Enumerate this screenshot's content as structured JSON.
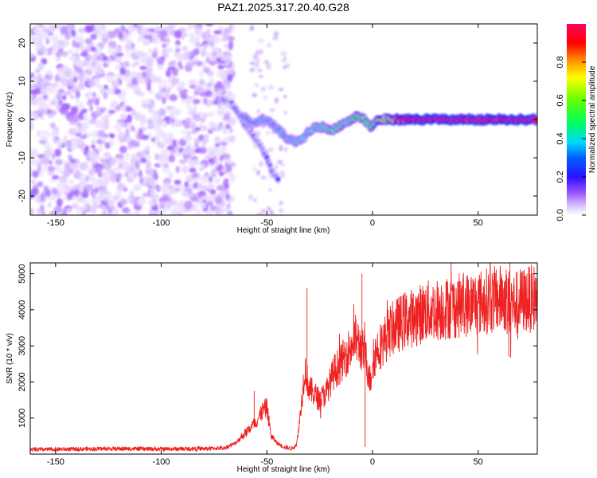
{
  "figure_title": "PAZ1.2025.317.20.40.G28",
  "colors": {
    "snr_line": "#ee2222",
    "ridge": [
      "#ffffff",
      "#e8d8ff",
      "#b48cff",
      "#7a1ef0",
      "#2020ff",
      "#00c8ff",
      "#00e050",
      "#ffd000",
      "#ff2000",
      "#ff0080"
    ]
  },
  "chart_data": [
    {
      "type": "heatmap",
      "title": "PAZ1.2025.317.20.40.G28",
      "xlabel": "Height of straight line (km)",
      "ylabel": "Frequency (Hz)",
      "xlim": [
        -162,
        78
      ],
      "ylim": [
        -25,
        25
      ],
      "x_ticks": [
        -150,
        -100,
        -50,
        0,
        50
      ],
      "x_tick_labels": [
        "-150",
        "-100",
        "-50",
        "0",
        "50"
      ],
      "y_ticks": [
        -20,
        -10,
        0,
        10,
        20
      ],
      "y_tick_labels": [
        "-20",
        "-10",
        "0",
        "10",
        "20"
      ],
      "colorbar": {
        "label": "Normalized spectral amplitude",
        "range": [
          0,
          1
        ],
        "ticks": [
          0.0,
          0.2,
          0.4,
          0.6,
          0.8
        ],
        "tick_labels": [
          "0.0",
          "0.2",
          "0.4",
          "0.6",
          "0.8"
        ],
        "colormap": "white-purple-blue-cyan-green-yellow-red-magenta"
      },
      "description_of_signal": [
        {
          "segment": "noise",
          "x_range": [
            -162,
            -72
          ],
          "freq_range": [
            -25,
            25
          ],
          "amplitude_range": [
            0.02,
            0.1
          ]
        },
        {
          "segment": "descending_ridge",
          "points": [
            [
              -72,
              5
            ],
            [
              -68,
              5
            ],
            [
              -65,
              3
            ],
            [
              -62,
              0
            ],
            [
              -58,
              -3
            ],
            [
              -54,
              -6
            ],
            [
              -50,
              -10
            ],
            [
              -47,
              -14
            ],
            [
              -44,
              -16
            ]
          ]
        },
        {
          "segment": "ridge",
          "points": [
            [
              -62,
              1
            ],
            [
              -57,
              -1
            ],
            [
              -52,
              0
            ],
            [
              -48,
              -1
            ],
            [
              -44,
              -3
            ],
            [
              -40,
              -5
            ],
            [
              -36,
              -6
            ],
            [
              -33,
              -5
            ],
            [
              -30,
              -3
            ],
            [
              -27,
              -2
            ],
            [
              -23,
              -2
            ],
            [
              -20,
              -3
            ],
            [
              -17,
              -2
            ],
            [
              -13,
              -1
            ],
            [
              -10,
              0
            ],
            [
              -7,
              1
            ],
            [
              -4,
              0
            ],
            [
              -1,
              -2
            ],
            [
              3,
              0
            ],
            [
              8,
              0
            ],
            [
              15,
              0
            ],
            [
              25,
              0
            ],
            [
              40,
              0
            ],
            [
              60,
              0
            ],
            [
              78,
              0
            ]
          ]
        }
      ]
    },
    {
      "type": "line",
      "xlabel": "Height of straight line (km)",
      "ylabel": "SNR (10 * v/v)",
      "xlim": [
        -162,
        78
      ],
      "ylim": [
        0,
        5300
      ],
      "x_ticks": [
        -150,
        -100,
        -50,
        0,
        50
      ],
      "x_tick_labels": [
        "-150",
        "-100",
        "-50",
        "0",
        "50"
      ],
      "y_ticks": [
        1000,
        2000,
        3000,
        4000,
        5000
      ],
      "y_tick_labels": [
        "1000",
        "2000",
        "3000",
        "4000",
        "5000"
      ],
      "series": [
        {
          "name": "SNR",
          "x": [
            -162,
            -140,
            -120,
            -100,
            -80,
            -70,
            -65,
            -60,
            -55,
            -52,
            -50,
            -48,
            -45,
            -42,
            -38,
            -36,
            -34,
            -32,
            -30,
            -28,
            -25,
            -22,
            -20,
            -18,
            -15,
            -12,
            -10,
            -8,
            -5,
            -3,
            -1,
            0,
            2,
            5,
            8,
            10,
            15,
            20,
            25,
            30,
            35,
            40,
            45,
            50,
            55,
            60,
            62,
            65,
            67,
            70,
            75,
            78
          ],
          "values": [
            120,
            140,
            150,
            140,
            150,
            170,
            300,
            600,
            900,
            1200,
            1300,
            500,
            300,
            200,
            150,
            250,
            1200,
            2400,
            1800,
            1700,
            1500,
            1700,
            2000,
            2300,
            2500,
            2800,
            3000,
            3200,
            2900,
            2600,
            2000,
            2500,
            2900,
            3100,
            3400,
            3500,
            3700,
            3800,
            3950,
            4000,
            4050,
            4100,
            4150,
            4200,
            4250,
            4300,
            4350,
            4200,
            4150,
            4250,
            4300,
            4350
          ],
          "extremes": [
            {
              "x": -56,
              "value": 1750
            },
            {
              "x": -31,
              "value": 4600
            },
            {
              "x": -5,
              "value": 5000
            },
            {
              "x": -3.5,
              "value": 200
            },
            {
              "x": 65,
              "value": 5300
            },
            {
              "x": 64.5,
              "value": 2700
            }
          ]
        }
      ]
    }
  ]
}
